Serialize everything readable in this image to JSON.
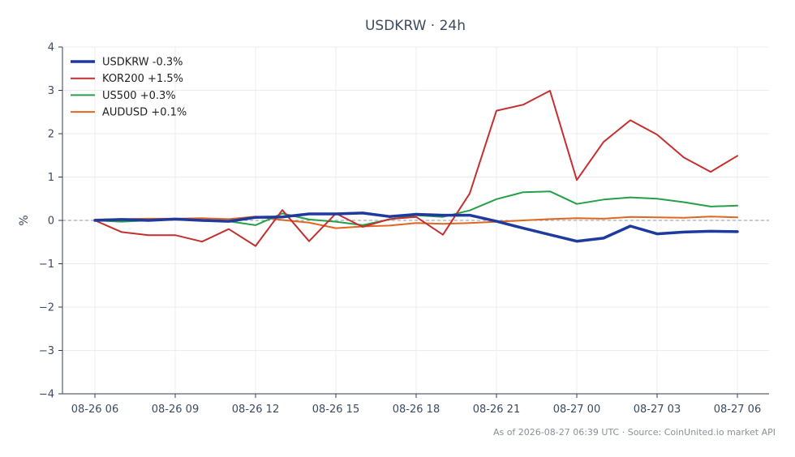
{
  "chart_data": {
    "type": "line",
    "title": "USDKRW · 24h",
    "xlabel": "",
    "ylabel": "%",
    "ylim": [
      -4,
      4
    ],
    "yticks": [
      "4",
      "3",
      "2",
      "1",
      "0",
      "−1",
      "−2",
      "−3",
      "−4"
    ],
    "xticks": [
      "08-26 06",
      "08-26 09",
      "08-26 12",
      "08-26 15",
      "08-26 18",
      "08-26 21",
      "08-27 00",
      "08-27 03",
      "08-27 06"
    ],
    "x_hours": [
      0,
      1,
      2,
      3,
      4,
      5,
      6,
      7,
      8,
      9,
      10,
      11,
      12,
      13,
      14,
      15,
      16,
      17,
      18,
      19,
      20,
      21,
      22,
      23,
      24
    ],
    "grid": true,
    "zero_line": true,
    "legend_position": "top-left",
    "series": [
      {
        "name": "USDKRW -0.3%",
        "color": "#1f3a9e",
        "width": 3.5,
        "values": [
          0.0,
          0.02,
          0.0,
          0.03,
          0.0,
          -0.02,
          0.07,
          0.08,
          0.15,
          0.15,
          0.17,
          0.09,
          0.14,
          0.12,
          0.12,
          -0.02,
          -0.18,
          -0.33,
          -0.48,
          -0.41,
          -0.13,
          -0.31,
          -0.27,
          -0.25,
          -0.26
        ]
      },
      {
        "name": "KOR200 +1.5%",
        "color": "#c62f2f",
        "width": 2,
        "values": [
          0.0,
          -0.27,
          -0.34,
          -0.34,
          -0.49,
          -0.2,
          -0.59,
          0.24,
          -0.48,
          0.16,
          -0.15,
          0.03,
          0.08,
          -0.33,
          0.62,
          2.53,
          2.67,
          2.99,
          0.93,
          1.81,
          2.31,
          1.98,
          1.45,
          1.12,
          1.49
        ]
      },
      {
        "name": "US500 +0.3%",
        "color": "#26a047",
        "width": 2,
        "values": [
          0.0,
          -0.03,
          0.0,
          0.02,
          0.01,
          -0.02,
          -0.11,
          0.16,
          0.02,
          -0.03,
          -0.11,
          0.02,
          0.12,
          0.08,
          0.23,
          0.49,
          0.65,
          0.67,
          0.38,
          0.48,
          0.53,
          0.5,
          0.42,
          0.32,
          0.34
        ]
      },
      {
        "name": "AUDUSD +0.1%",
        "color": "#e0661f",
        "width": 2,
        "values": [
          0.02,
          0.03,
          0.04,
          0.04,
          0.05,
          0.03,
          0.09,
          0.01,
          -0.05,
          -0.18,
          -0.14,
          -0.12,
          -0.06,
          -0.08,
          -0.06,
          -0.03,
          0.0,
          0.03,
          0.05,
          0.04,
          0.08,
          0.07,
          0.06,
          0.09,
          0.07
        ]
      }
    ],
    "footer": "As of 2026-08-27 06:39 UTC · Source: CoinUnited.io market API"
  }
}
